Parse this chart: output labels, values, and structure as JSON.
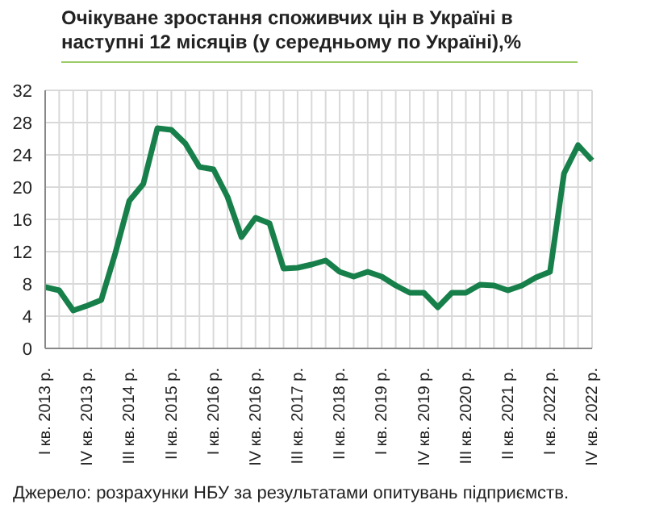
{
  "chart_data": {
    "type": "line",
    "title": "Очікуване зростання споживчих цін в Україні в наступні 12 місяців (у середньому по Україні),%",
    "categories": [
      "I кв. 2013 р.",
      null,
      null,
      "IV кв. 2013 р.",
      null,
      null,
      "III кв. 2014 р.",
      null,
      null,
      "II кв. 2015 р.",
      null,
      null,
      "I кв. 2016 р.",
      null,
      null,
      "IV кв. 2016 р.",
      null,
      null,
      "III кв. 2017 р.",
      null,
      null,
      "II кв. 2018 р.",
      null,
      null,
      "I кв. 2019 р.",
      null,
      null,
      "IV кв. 2019 р.",
      null,
      null,
      "III кв. 2020 р.",
      null,
      null,
      "II кв. 2021 р.",
      null,
      null,
      "I кв. 2022 р.",
      null,
      null,
      "IV кв. 2022 р."
    ],
    "series": [
      {
        "color": "#17804a",
        "values": [
          7.6,
          7.2,
          4.7,
          5.3,
          6.0,
          11.8,
          18.3,
          20.4,
          27.3,
          27.1,
          25.4,
          22.5,
          22.2,
          18.8,
          13.8,
          16.2,
          15.5,
          9.9,
          10.0,
          10.4,
          10.9,
          9.5,
          8.9,
          9.5,
          8.9,
          7.8,
          6.9,
          6.9,
          5.1,
          6.9,
          6.9,
          7.9,
          7.8,
          7.2,
          7.8,
          8.8,
          9.5,
          21.7,
          25.2,
          23.3
        ]
      }
    ],
    "ylim": [
      0,
      32
    ],
    "yticks": [
      0,
      4,
      8,
      12,
      16,
      20,
      24,
      28,
      32
    ],
    "grid": true,
    "marker": "none",
    "line_style": "solid",
    "annotations": [
      "Джерело: розрахунки НБУ за результатами опитувань підприємств."
    ]
  }
}
